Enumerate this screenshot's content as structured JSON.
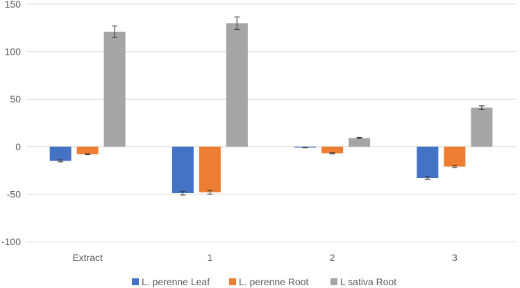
{
  "chart_data": {
    "type": "bar",
    "title": "",
    "xlabel": "",
    "ylabel": "",
    "ylim": [
      -100,
      150
    ],
    "yticks": [
      150,
      100,
      50,
      0,
      -50,
      -100
    ],
    "grid": true,
    "legend_position": "bottom",
    "categories": [
      "Extract",
      "1",
      "2",
      "3"
    ],
    "series": [
      {
        "name": "L. perenne Leaf",
        "color": "#4472C4",
        "values": [
          -15,
          -49,
          -1,
          -33
        ],
        "errors": [
          1,
          2,
          0.3,
          1.5
        ]
      },
      {
        "name": "L. perenne Root",
        "color": "#ED7D31",
        "values": [
          -8,
          -48,
          -7,
          -21
        ],
        "errors": [
          0.5,
          2,
          0.5,
          1.2
        ]
      },
      {
        "name": "L sativa Root",
        "color": "#A5A5A5",
        "values": [
          121,
          130,
          9,
          41
        ],
        "errors": [
          6,
          6.5,
          0.7,
          2
        ]
      }
    ]
  }
}
